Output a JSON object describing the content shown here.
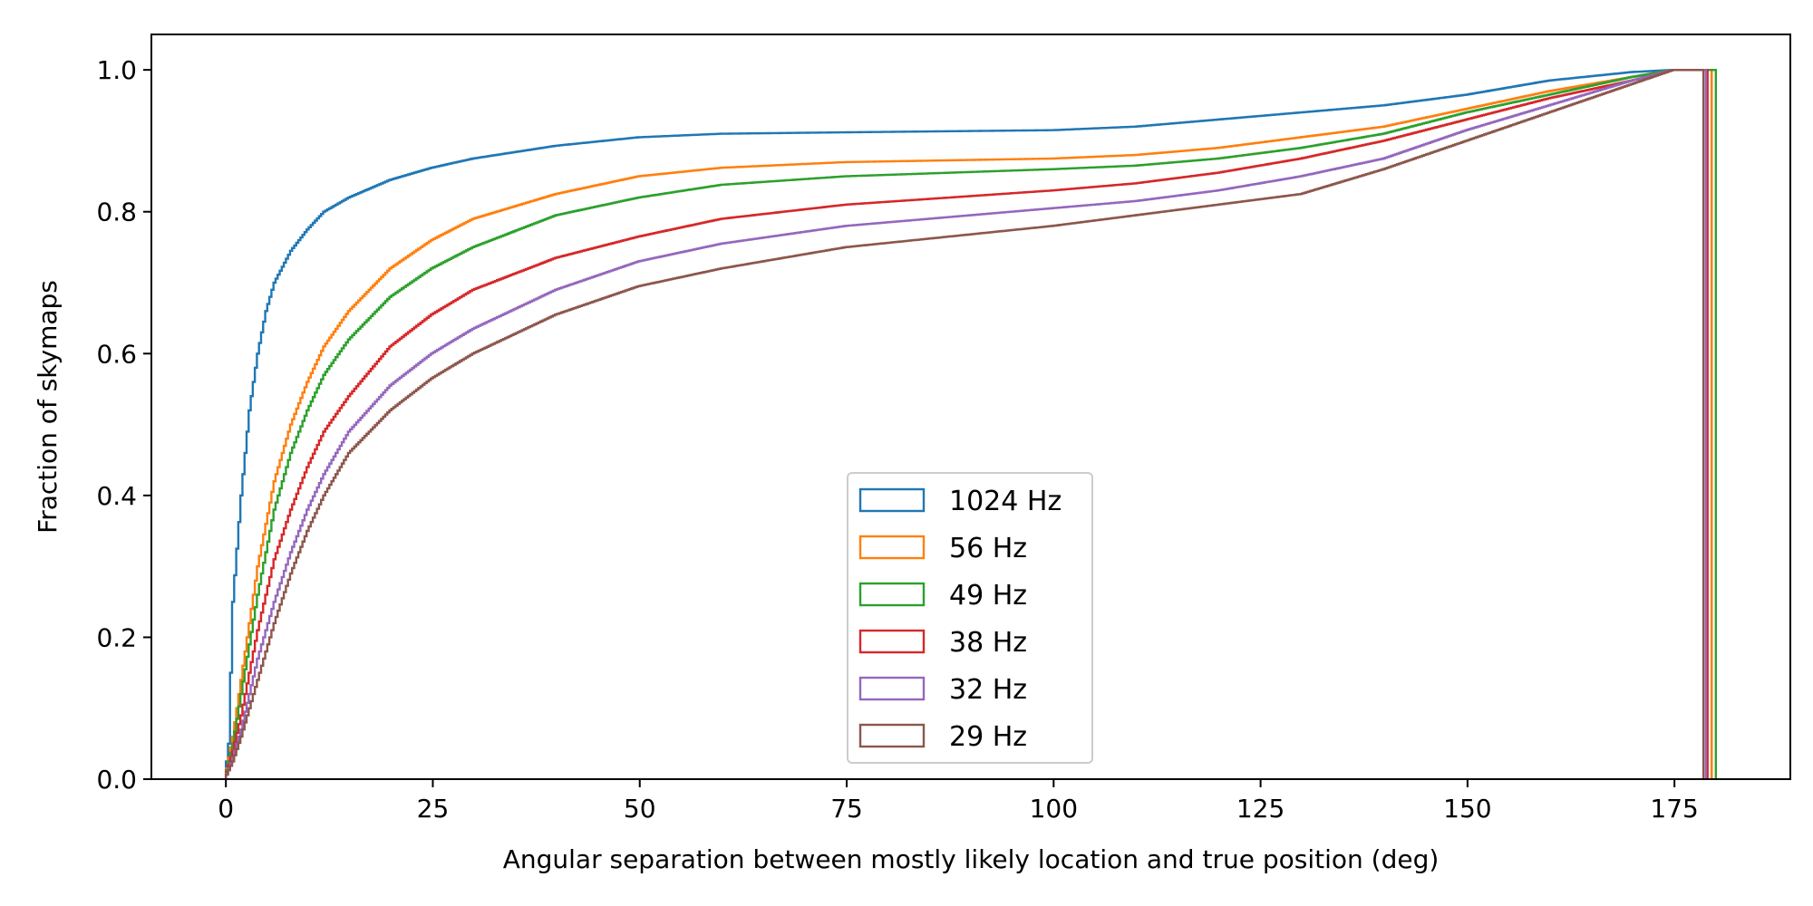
{
  "chart_data": {
    "type": "line",
    "step": true,
    "title": "",
    "xlabel": "Angular separation between mostly likely location and true position (deg)",
    "ylabel": "Fraction of skymaps",
    "xlim": [
      -9,
      189
    ],
    "ylim": [
      0,
      1.05
    ],
    "xticks": [
      0,
      25,
      50,
      75,
      100,
      125,
      150,
      175
    ],
    "yticks": [
      0.0,
      0.2,
      0.4,
      0.6,
      0.8,
      1.0
    ],
    "xtick_labels": [
      "0",
      "25",
      "50",
      "75",
      "100",
      "125",
      "150",
      "175"
    ],
    "ytick_labels": [
      "0.0",
      "0.2",
      "0.4",
      "0.6",
      "0.8",
      "1.0"
    ],
    "grid": false,
    "legend_position": "lower center",
    "series": [
      {
        "name": "1024 Hz",
        "color": "#1f77b4",
        "end_x": 179.5,
        "x": [
          0,
          0.5,
          1,
          2,
          3,
          4,
          5,
          6,
          8,
          10,
          12,
          15,
          20,
          25,
          30,
          40,
          50,
          60,
          75,
          100,
          110,
          120,
          130,
          140,
          150,
          160,
          170,
          175,
          179.5
        ],
        "y": [
          0,
          0.05,
          0.25,
          0.4,
          0.52,
          0.6,
          0.66,
          0.7,
          0.745,
          0.775,
          0.8,
          0.82,
          0.845,
          0.862,
          0.875,
          0.893,
          0.905,
          0.91,
          0.912,
          0.915,
          0.92,
          0.93,
          0.94,
          0.95,
          0.965,
          0.985,
          0.997,
          1.0,
          1.0
        ]
      },
      {
        "name": "56 Hz",
        "color": "#ff7f0e",
        "end_x": 179.5,
        "x": [
          0,
          1,
          2,
          3,
          4,
          5,
          6,
          8,
          10,
          12,
          15,
          20,
          25,
          30,
          40,
          50,
          60,
          75,
          100,
          110,
          120,
          130,
          140,
          150,
          160,
          170,
          175,
          179.5
        ],
        "y": [
          0,
          0.06,
          0.14,
          0.22,
          0.3,
          0.36,
          0.42,
          0.5,
          0.56,
          0.61,
          0.66,
          0.72,
          0.76,
          0.79,
          0.825,
          0.85,
          0.862,
          0.87,
          0.875,
          0.88,
          0.89,
          0.905,
          0.92,
          0.945,
          0.97,
          0.99,
          1.0,
          1.0
        ]
      },
      {
        "name": "49 Hz",
        "color": "#2ca02c",
        "end_x": 180,
        "x": [
          0,
          1,
          2,
          3,
          4,
          5,
          6,
          8,
          10,
          12,
          15,
          20,
          25,
          30,
          40,
          50,
          60,
          75,
          100,
          110,
          120,
          130,
          140,
          150,
          160,
          170,
          175,
          180
        ],
        "y": [
          0,
          0.05,
          0.12,
          0.19,
          0.26,
          0.32,
          0.38,
          0.46,
          0.52,
          0.57,
          0.62,
          0.68,
          0.72,
          0.75,
          0.795,
          0.82,
          0.838,
          0.85,
          0.86,
          0.865,
          0.875,
          0.89,
          0.91,
          0.94,
          0.965,
          0.99,
          1.0,
          1.0
        ]
      },
      {
        "name": "38 Hz",
        "color": "#d62728",
        "end_x": 179,
        "x": [
          0,
          1,
          2,
          3,
          4,
          5,
          6,
          8,
          10,
          12,
          15,
          20,
          25,
          30,
          40,
          50,
          60,
          75,
          100,
          110,
          120,
          130,
          140,
          150,
          160,
          170,
          175,
          179
        ],
        "y": [
          0,
          0.04,
          0.09,
          0.15,
          0.21,
          0.26,
          0.31,
          0.38,
          0.44,
          0.49,
          0.54,
          0.61,
          0.655,
          0.69,
          0.735,
          0.765,
          0.79,
          0.81,
          0.83,
          0.84,
          0.855,
          0.875,
          0.9,
          0.93,
          0.96,
          0.985,
          1.0,
          1.0
        ]
      },
      {
        "name": "32 Hz",
        "color": "#9467bd",
        "end_x": 178.8,
        "x": [
          0,
          1,
          2,
          3,
          4,
          5,
          6,
          8,
          10,
          12,
          15,
          20,
          25,
          30,
          40,
          50,
          60,
          75,
          100,
          110,
          120,
          130,
          140,
          150,
          160,
          170,
          175,
          178.8
        ],
        "y": [
          0,
          0.03,
          0.07,
          0.12,
          0.17,
          0.21,
          0.25,
          0.32,
          0.38,
          0.43,
          0.49,
          0.555,
          0.6,
          0.635,
          0.69,
          0.73,
          0.755,
          0.78,
          0.805,
          0.815,
          0.83,
          0.85,
          0.875,
          0.915,
          0.95,
          0.985,
          1.0,
          1.0
        ]
      },
      {
        "name": "29 Hz",
        "color": "#8c564b",
        "end_x": 178.5,
        "x": [
          0,
          1,
          2,
          3,
          4,
          5,
          6,
          8,
          10,
          12,
          15,
          20,
          25,
          30,
          40,
          50,
          60,
          75,
          100,
          110,
          120,
          130,
          140,
          150,
          160,
          170,
          175,
          178.5
        ],
        "y": [
          0,
          0.025,
          0.06,
          0.1,
          0.14,
          0.18,
          0.22,
          0.29,
          0.35,
          0.4,
          0.46,
          0.52,
          0.565,
          0.6,
          0.655,
          0.695,
          0.72,
          0.75,
          0.78,
          0.795,
          0.81,
          0.825,
          0.86,
          0.9,
          0.94,
          0.98,
          1.0,
          1.0
        ]
      }
    ]
  }
}
